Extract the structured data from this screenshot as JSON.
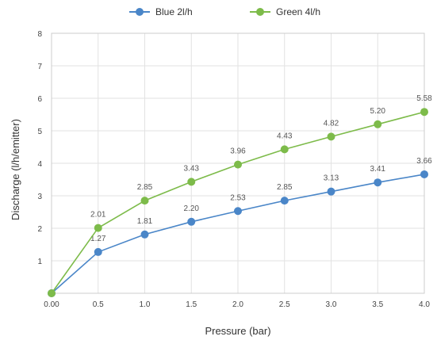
{
  "chart_data": {
    "type": "line",
    "title": "",
    "xlabel": "Pressure (bar)",
    "ylabel": "Discharge (l/h/emitter)",
    "x": [
      0,
      0.5,
      1.0,
      1.5,
      2.0,
      2.5,
      3.0,
      3.5,
      4.0
    ],
    "x_tick_labels": [
      "0.00",
      "0.5",
      "1.0",
      "1.5",
      "2.0",
      "2.5",
      "3.0",
      "3.5",
      "4.0"
    ],
    "xlim": [
      0,
      4.0
    ],
    "ylim": [
      0,
      8
    ],
    "y_ticks": [
      1,
      2,
      3,
      4,
      5,
      6,
      7,
      8
    ],
    "grid": true,
    "legend_position": "top",
    "series": [
      {
        "name": "Blue 2l/h",
        "color": "#4a86c8",
        "values": [
          0,
          1.27,
          1.81,
          2.2,
          2.53,
          2.85,
          3.13,
          3.41,
          3.66
        ],
        "labels": [
          "",
          "1.27",
          "1.81",
          "2.20",
          "2.53",
          "2.85",
          "3.13",
          "3.41",
          "3.66"
        ]
      },
      {
        "name": "Green 4l/h",
        "color": "#7dbb4a",
        "values": [
          0,
          2.01,
          2.85,
          3.43,
          3.96,
          4.43,
          4.82,
          5.2,
          5.58
        ],
        "labels": [
          "",
          "2.01",
          "2.85",
          "3.43",
          "3.96",
          "4.43",
          "4.82",
          "5.20",
          "5.58"
        ]
      }
    ]
  }
}
